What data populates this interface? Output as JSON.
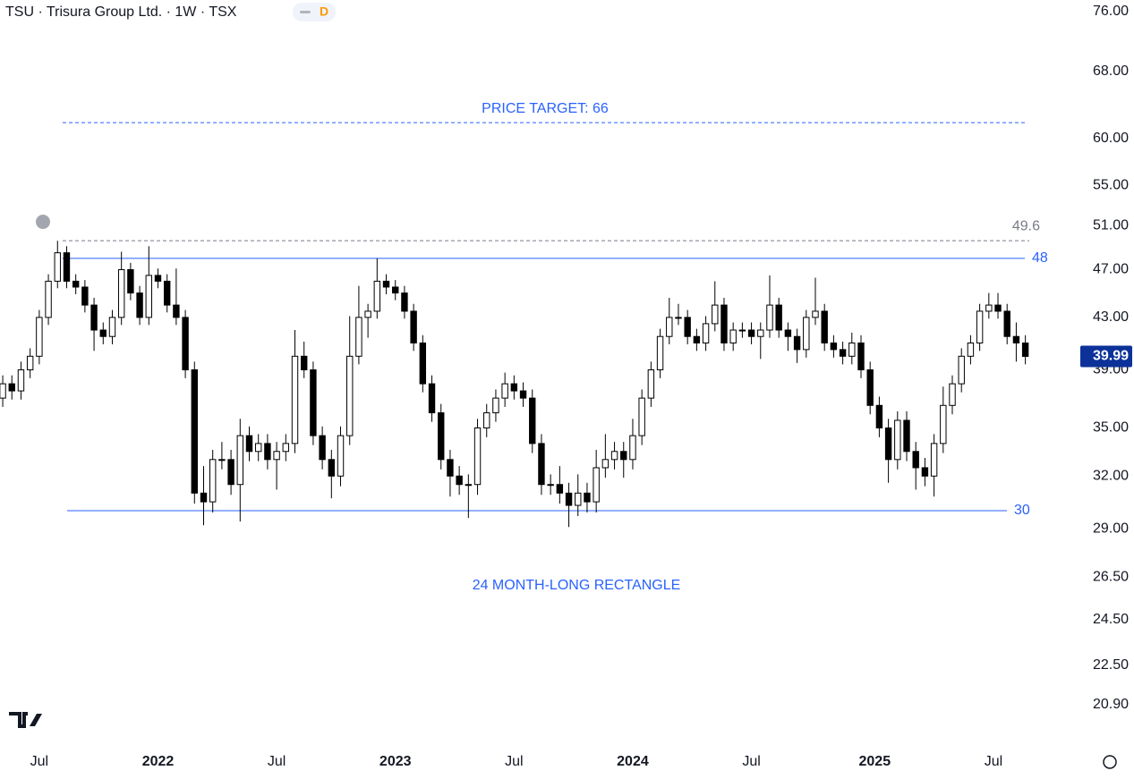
{
  "chart_data": {
    "type": "candlestick",
    "title": "TSU · Trisura Group Ltd. · 1W · TSX",
    "badge": "D",
    "log_scale": true,
    "up_color": "#ffffff",
    "down_color": "#000000",
    "wick_color": "#000000",
    "xlim": [
      -8.6,
      224.7
    ],
    "xticks": [
      {
        "value": 0,
        "label": "Jul"
      },
      {
        "value": 26,
        "label": "2022"
      },
      {
        "value": 52,
        "label": "Jul"
      },
      {
        "value": 78,
        "label": "2023"
      },
      {
        "value": 104,
        "label": "Jul"
      },
      {
        "value": 130,
        "label": "2024"
      },
      {
        "value": 156,
        "label": "Jul"
      },
      {
        "value": 183,
        "label": "2025"
      },
      {
        "value": 209,
        "label": "Jul"
      }
    ],
    "ylim": [
      20.9,
      76
    ],
    "yticks": [
      {
        "value": 20.9,
        "label": "20.90"
      },
      {
        "value": 22.5,
        "label": "22.50"
      },
      {
        "value": 24.5,
        "label": "24.50"
      },
      {
        "value": 26.5,
        "label": "26.50"
      },
      {
        "value": 29,
        "label": "29.00"
      },
      {
        "value": 32,
        "label": "32.00"
      },
      {
        "value": 35,
        "label": "35.00"
      },
      {
        "value": 39,
        "label": "39.00"
      },
      {
        "value": 43,
        "label": "43.00"
      },
      {
        "value": 47,
        "label": "47.00"
      },
      {
        "value": 51,
        "label": "51.00"
      },
      {
        "value": 55,
        "label": "55.00"
      },
      {
        "value": 60,
        "label": "60.00"
      },
      {
        "value": 68,
        "label": "68.00"
      },
      {
        "value": 76,
        "label": "76.00"
      }
    ],
    "last_price": 39.99,
    "last_price_color": "#0c3299",
    "levels": [
      {
        "value": 48,
        "label": "48",
        "color": "#2962ff",
        "dashed": false
      },
      {
        "value": 30,
        "label": "30",
        "color": "#2962ff",
        "dashed": false
      },
      {
        "value": 49.6,
        "label": "49.6",
        "color": "#787b86",
        "dashed": true
      },
      {
        "value": 61.8,
        "color": "#2962ff",
        "dashed": true
      }
    ],
    "annotations": [
      "PRICE TARGET: 66",
      "24 MONTH-LONG RECTANGLE"
    ],
    "x": [
      -8,
      -6,
      -4,
      -2,
      0,
      2,
      4,
      6,
      8,
      10,
      12,
      14,
      16,
      18,
      20,
      22,
      24,
      26,
      28,
      30,
      32,
      34,
      36,
      38,
      40,
      42,
      44,
      46,
      48,
      50,
      52,
      54,
      56,
      58,
      60,
      62,
      64,
      66,
      68,
      70,
      72,
      74,
      76,
      78,
      80,
      82,
      84,
      86,
      88,
      90,
      92,
      94,
      96,
      98,
      100,
      102,
      104,
      106,
      108,
      110,
      112,
      114,
      116,
      118,
      120,
      122,
      124,
      126,
      128,
      130,
      132,
      134,
      136,
      138,
      140,
      142,
      144,
      146,
      148,
      150,
      152,
      154,
      156,
      158,
      160,
      162,
      164,
      166,
      168,
      170,
      172,
      174,
      176,
      178,
      180,
      182,
      184,
      186,
      188,
      190,
      192,
      194,
      196,
      198,
      200,
      202,
      204,
      206,
      208,
      210,
      212,
      214,
      216
    ],
    "candles": [
      [
        37,
        38.6,
        36.4,
        38
      ],
      [
        38,
        38.6,
        36.9,
        37.5
      ],
      [
        37.5,
        39.6,
        36.9,
        39
      ],
      [
        39,
        40.6,
        38.4,
        40
      ],
      [
        40,
        43.6,
        39.4,
        43
      ],
      [
        43,
        46.6,
        42.4,
        46
      ],
      [
        46,
        49.6,
        45.4,
        48.5
      ],
      [
        48.5,
        49.1,
        45.4,
        46
      ],
      [
        46,
        46.6,
        44.9,
        45.5
      ],
      [
        45.5,
        46.1,
        43.4,
        44
      ],
      [
        44,
        44.6,
        40.4,
        42
      ],
      [
        42,
        42.6,
        40.9,
        41.5
      ],
      [
        41.5,
        43.6,
        40.9,
        43
      ],
      [
        43,
        48.6,
        42.4,
        47
      ],
      [
        47,
        47.6,
        44.4,
        45
      ],
      [
        45,
        45.6,
        42.4,
        43
      ],
      [
        43,
        49.1,
        42.4,
        46.5
      ],
      [
        46.5,
        47.1,
        45.4,
        46
      ],
      [
        46,
        46.6,
        43.4,
        44
      ],
      [
        44,
        47.1,
        42.4,
        43
      ],
      [
        43,
        43.6,
        38.4,
        39
      ],
      [
        39,
        39.6,
        30.4,
        31
      ],
      [
        31,
        32.6,
        29.2,
        30.5
      ],
      [
        30.5,
        33.6,
        29.9,
        33
      ],
      [
        33,
        34.1,
        32.4,
        33
      ],
      [
        33,
        33.6,
        30.9,
        31.5
      ],
      [
        31.5,
        35.6,
        29.4,
        34.5
      ],
      [
        34.5,
        35.1,
        32.9,
        33.5
      ],
      [
        33.5,
        34.6,
        32.9,
        34
      ],
      [
        34,
        34.6,
        32.4,
        33
      ],
      [
        33,
        34.1,
        31.2,
        33.5
      ],
      [
        33.5,
        34.6,
        32.9,
        34
      ],
      [
        34,
        42,
        33.4,
        40
      ],
      [
        40,
        41.1,
        38.4,
        39
      ],
      [
        39,
        39.6,
        33.9,
        34.5
      ],
      [
        34.5,
        35.1,
        32.4,
        33
      ],
      [
        33,
        33.6,
        30.7,
        32
      ],
      [
        32,
        35.1,
        31.4,
        34.5
      ],
      [
        34.5,
        43.1,
        33.9,
        40
      ],
      [
        40,
        45.6,
        39.4,
        43
      ],
      [
        43,
        44.1,
        41.4,
        43.5
      ],
      [
        43.5,
        48,
        42.9,
        46
      ],
      [
        46,
        46.6,
        44.9,
        45.5
      ],
      [
        45.5,
        46.1,
        44.4,
        45
      ],
      [
        45,
        45.6,
        42.9,
        43.5
      ],
      [
        43.5,
        44.1,
        40.4,
        41
      ],
      [
        41,
        41.6,
        37.4,
        38
      ],
      [
        38,
        38.6,
        35.4,
        36
      ],
      [
        36,
        36.6,
        32.4,
        33
      ],
      [
        33,
        33.6,
        30.8,
        32
      ],
      [
        32,
        32.6,
        30.9,
        31.5
      ],
      [
        31.5,
        32.1,
        29.6,
        31.5
      ],
      [
        31.5,
        35.6,
        30.9,
        35
      ],
      [
        35,
        36.6,
        34.4,
        36
      ],
      [
        36,
        37.6,
        35.4,
        37
      ],
      [
        37,
        38.8,
        36.4,
        38
      ],
      [
        38,
        38.6,
        36.9,
        37.5
      ],
      [
        37.5,
        38.1,
        36.4,
        37
      ],
      [
        37,
        37.6,
        33.4,
        34
      ],
      [
        34,
        34.6,
        30.9,
        31.5
      ],
      [
        31.5,
        32.1,
        30.9,
        31.5
      ],
      [
        31.5,
        32.6,
        30.4,
        31
      ],
      [
        31,
        31.6,
        29.1,
        30.3
      ],
      [
        30.3,
        32.1,
        29.7,
        31
      ],
      [
        31,
        31.6,
        29.9,
        30.5
      ],
      [
        30.5,
        33.6,
        29.9,
        32.5
      ],
      [
        32.5,
        34.6,
        31.9,
        33
      ],
      [
        33,
        34.1,
        32.4,
        33.5
      ],
      [
        33.5,
        34.1,
        31.9,
        33
      ],
      [
        33,
        35.6,
        32.4,
        34.5
      ],
      [
        34.5,
        37.6,
        33.9,
        37
      ],
      [
        37,
        39.6,
        36.4,
        39
      ],
      [
        39,
        42.1,
        38.4,
        41.5
      ],
      [
        41.5,
        44.6,
        40.9,
        43
      ],
      [
        43,
        44.1,
        42.4,
        43
      ],
      [
        43,
        43.6,
        40.9,
        41.5
      ],
      [
        41.5,
        42.1,
        40.4,
        41
      ],
      [
        41,
        43.1,
        40.4,
        42.5
      ],
      [
        42.5,
        46,
        41.9,
        44
      ],
      [
        44,
        44.6,
        40.4,
        41
      ],
      [
        41,
        42.6,
        40.4,
        42
      ],
      [
        42,
        42.6,
        41.4,
        42
      ],
      [
        42,
        42.6,
        40.9,
        41.5
      ],
      [
        41.5,
        42.6,
        39.8,
        42
      ],
      [
        42,
        46.5,
        41.4,
        44
      ],
      [
        44,
        44.6,
        41.4,
        42
      ],
      [
        42,
        42.6,
        40.4,
        41.5
      ],
      [
        41.5,
        42.1,
        39.5,
        40.5
      ],
      [
        40.5,
        43.6,
        39.9,
        43
      ],
      [
        43,
        46.3,
        42.4,
        43.5
      ],
      [
        43.5,
        44.1,
        40.4,
        41
      ],
      [
        41,
        41.6,
        39.9,
        40.5
      ],
      [
        40.5,
        41.1,
        39.4,
        40
      ],
      [
        40,
        41.8,
        39.4,
        41
      ],
      [
        41,
        41.6,
        38.4,
        39
      ],
      [
        39,
        39.6,
        35.9,
        36.5
      ],
      [
        36.5,
        37.1,
        34.4,
        35
      ],
      [
        35,
        35.6,
        31.6,
        33
      ],
      [
        33,
        36.1,
        32.4,
        35.5
      ],
      [
        35.5,
        36.1,
        32.9,
        33.5
      ],
      [
        33.5,
        34.1,
        31.2,
        32.5
      ],
      [
        32.5,
        33.1,
        31.4,
        32
      ],
      [
        32,
        34.6,
        30.8,
        34
      ],
      [
        34,
        37.8,
        33.4,
        36.5
      ],
      [
        36.5,
        38.6,
        35.9,
        38
      ],
      [
        38,
        40.6,
        37.4,
        40
      ],
      [
        40,
        41.6,
        39.4,
        41
      ],
      [
        41,
        44.1,
        40.4,
        43.5
      ],
      [
        43.5,
        45,
        42.9,
        44
      ],
      [
        44,
        45,
        42.9,
        43.5
      ],
      [
        43.5,
        44.1,
        40.9,
        41.5
      ],
      [
        41.5,
        42.6,
        39.6,
        41
      ],
      [
        41,
        41.6,
        39.4,
        39.99
      ]
    ]
  }
}
